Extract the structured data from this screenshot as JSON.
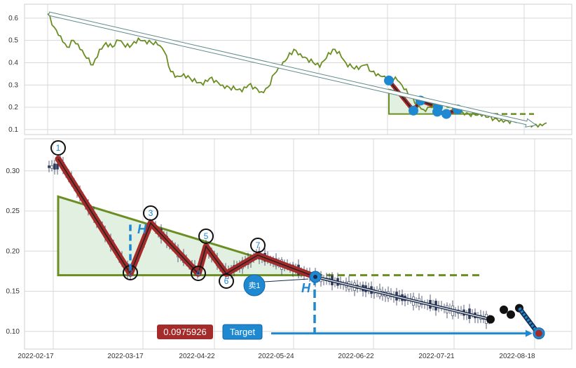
{
  "colors": {
    "price_line": "#6b8e23",
    "pattern_line": "#a52a2a",
    "pattern_dark": "#222222",
    "triangle": "#6b8e23",
    "triangle_fill": "#e2f0e2",
    "blue": "#1e88d0",
    "candle_dark": "#2e3a59",
    "label_red": "#a52a2a",
    "label_blue": "#1e88d0"
  },
  "chart_data": [
    {
      "type": "line",
      "panel": "overview",
      "ylim": [
        0.09,
        0.65
      ],
      "y_ticks": [
        "0.1",
        "0.2",
        "0.3",
        "0.4",
        "0.5",
        "0.6"
      ],
      "y_tick_values": [
        0.1,
        0.2,
        0.3,
        0.4,
        0.5,
        0.6
      ],
      "series": [
        {
          "values": [
            0.62,
            0.56,
            0.52,
            0.47,
            0.5,
            0.46,
            0.42,
            0.39,
            0.46,
            0.49,
            0.47,
            0.5,
            0.47,
            0.48,
            0.51,
            0.5,
            0.49,
            0.48,
            0.45,
            0.36,
            0.34,
            0.35,
            0.33,
            0.31,
            0.3,
            0.33,
            0.32,
            0.3,
            0.29,
            0.28,
            0.27,
            0.3,
            0.29,
            0.27,
            0.29,
            0.35,
            0.38,
            0.42,
            0.46,
            0.44,
            0.42,
            0.4,
            0.38,
            0.42,
            0.46,
            0.45,
            0.4,
            0.38,
            0.37,
            0.39,
            0.36,
            0.35,
            0.34,
            0.33,
            0.32,
            0.28,
            0.25,
            0.22,
            0.19,
            0.2,
            0.22,
            0.21,
            0.2,
            0.19,
            0.18,
            0.17,
            0.165,
            0.16,
            0.155,
            0.15,
            0.145,
            0.14,
            0.135,
            0.13,
            0.125,
            0.12,
            0.125,
            0.13
          ]
        }
      ],
      "markers": [
        0.32,
        0.185,
        0.23,
        0.2,
        0.18,
        0.17,
        0.19
      ],
      "flat_level": 0.17,
      "trend_arrow": {
        "start": 0.62,
        "end": 0.12
      }
    },
    {
      "type": "candlestick",
      "panel": "detail",
      "ylim": [
        0.078,
        0.34
      ],
      "x_ticks": [
        "2022-02-17",
        "2022-03-17",
        "2022-04-22",
        "2022-05-24",
        "2022-06-22",
        "2022-07-21",
        "2022-08-18"
      ],
      "y_ticks": [
        "0.10",
        "0.15",
        "0.20",
        "0.25",
        "0.30"
      ],
      "y_tick_values": [
        0.1,
        0.15,
        0.2,
        0.25,
        0.3
      ],
      "pattern_points": [
        {
          "label": "1",
          "value": 0.315
        },
        {
          "label": "2",
          "value": 0.172
        },
        {
          "label": "3",
          "value": 0.235
        },
        {
          "label": "4",
          "value": 0.172
        },
        {
          "label": "5",
          "value": 0.206
        },
        {
          "label": "6",
          "value": 0.172
        },
        {
          "label": "7",
          "value": 0.195
        },
        {
          "label": "",
          "value": 0.168
        }
      ],
      "triangle": {
        "top": 0.268,
        "base": 0.17
      },
      "breakout_level": 0.17,
      "trend_end": 0.115,
      "black_dots": [
        0.115,
        0.127,
        0.121,
        0.129
      ],
      "target_value": 0.0975926
    }
  ],
  "labels": {
    "sell_badge": "卖1",
    "h_left": "H",
    "h_right": "H",
    "target_value_box": "0.0975926",
    "target_box": "Target"
  }
}
